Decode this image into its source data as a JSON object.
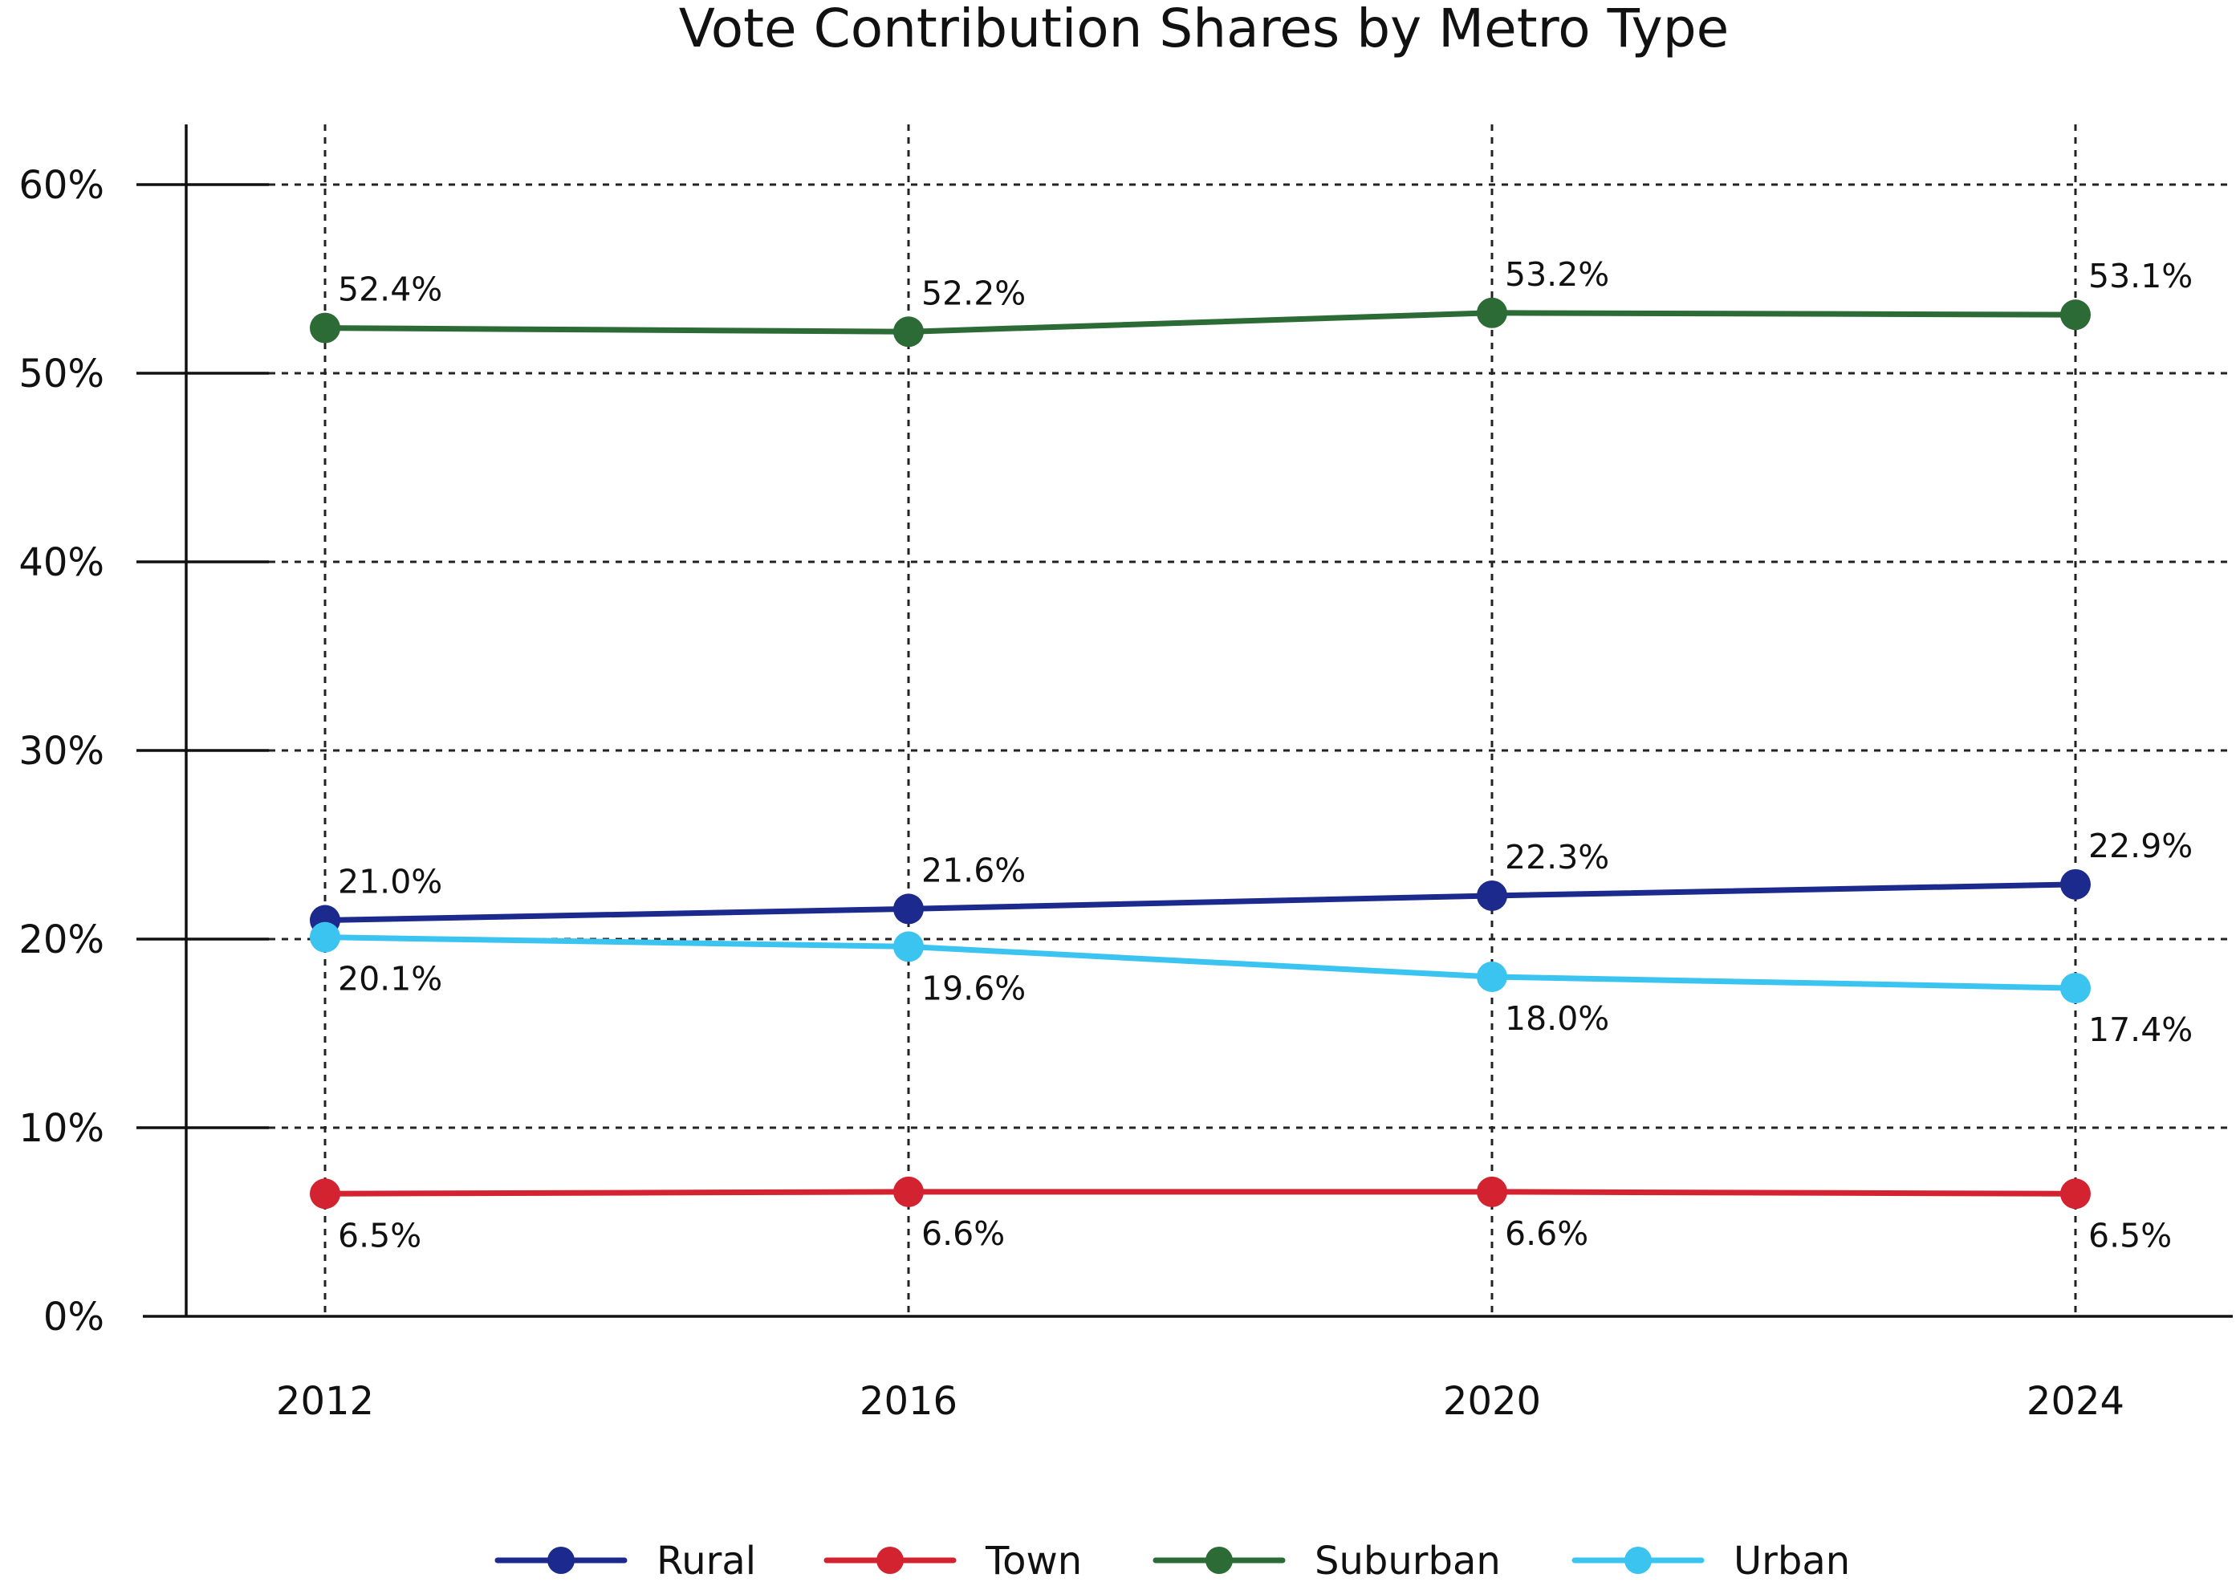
{
  "chart_data": {
    "type": "line",
    "title": "Vote Contribution Shares by Metro Type",
    "xlabel": "",
    "ylabel": "",
    "x": [
      "2012",
      "2016",
      "2020",
      "2024"
    ],
    "ylim": [
      0,
      60
    ],
    "yticks": [
      0,
      10,
      20,
      30,
      40,
      50,
      60
    ],
    "ytick_labels": [
      "0%",
      "10%",
      "20%",
      "30%",
      "40%",
      "50%",
      "60%"
    ],
    "grid": true,
    "legend_position": "bottom",
    "series": [
      {
        "name": "Rural",
        "color": "#1b2a8c",
        "values": [
          21.0,
          21.6,
          22.3,
          22.9
        ],
        "labels": [
          "21.0%",
          "21.6%",
          "22.3%",
          "22.9%"
        ],
        "label_placement": "above"
      },
      {
        "name": "Town",
        "color": "#d42330",
        "values": [
          6.5,
          6.6,
          6.6,
          6.5
        ],
        "labels": [
          "6.5%",
          "6.6%",
          "6.6%",
          "6.5%"
        ],
        "label_placement": "below"
      },
      {
        "name": "Suburban",
        "color": "#2c6b35",
        "values": [
          52.4,
          52.2,
          53.2,
          53.1
        ],
        "labels": [
          "52.4%",
          "52.2%",
          "53.2%",
          "53.1%"
        ],
        "label_placement": "above"
      },
      {
        "name": "Urban",
        "color": "#3bc4f0",
        "values": [
          20.1,
          19.6,
          18.0,
          17.4
        ],
        "labels": [
          "20.1%",
          "19.6%",
          "18.0%",
          "17.4%"
        ],
        "label_placement": "below"
      }
    ]
  }
}
